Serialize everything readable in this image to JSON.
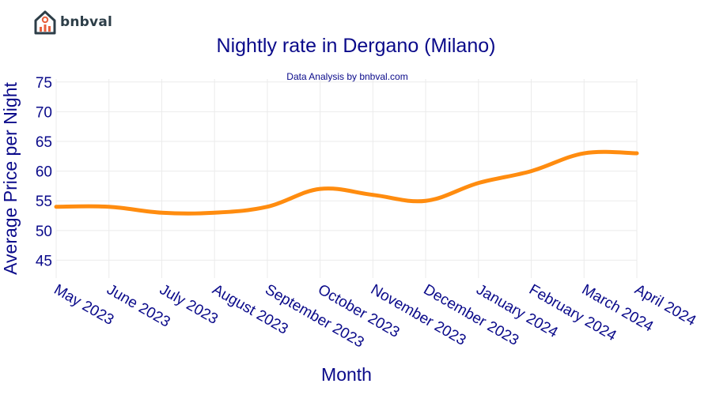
{
  "brand": {
    "name": "bnbval",
    "icon": "house-chart-icon",
    "colors": {
      "dark": "#2d3e48",
      "accent": "#e8603c"
    }
  },
  "chart_data": {
    "type": "line",
    "title": "Nightly rate in Dergano (Milano)",
    "subtitle": "Data Analysis by bnbval.com",
    "xlabel": "Month",
    "ylabel": "Average Price per Night",
    "categories": [
      "May 2023",
      "June 2023",
      "July 2023",
      "August 2023",
      "September 2023",
      "October 2023",
      "November 2023",
      "December 2023",
      "January 2024",
      "February 2024",
      "March 2024",
      "April 2024"
    ],
    "series": [
      {
        "values": [
          54,
          54,
          53,
          53,
          54,
          57,
          56,
          55,
          58,
          60,
          63,
          63
        ],
        "color": "#ff8c0f"
      }
    ],
    "yticks": [
      45,
      50,
      55,
      60,
      65,
      70,
      75
    ],
    "ylim": [
      42,
      75.5
    ],
    "grid": true,
    "legend": "none"
  }
}
